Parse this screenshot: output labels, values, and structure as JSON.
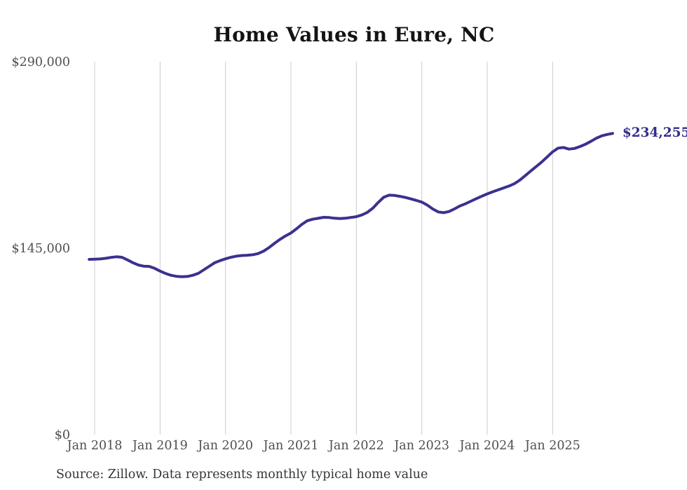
{
  "chart_data": {
    "type": "line",
    "title": "Home Values in Eure, NC",
    "source_note": "Source: Zillow. Data represents monthly typical home value",
    "x_tick_labels": [
      "Jan 2018",
      "Jan 2019",
      "Jan 2020",
      "Jan 2021",
      "Jan 2022",
      "Jan 2023",
      "Jan 2024",
      "Jan 2025"
    ],
    "y_ticks": [
      {
        "label": "$290,000",
        "value": 290000
      },
      {
        "label": "$145,000",
        "value": 145000
      },
      {
        "label": "$0",
        "value": 0
      }
    ],
    "ylim": [
      0,
      290000
    ],
    "x_start": "Dec 2017",
    "x_end": "Dec 2025",
    "interval": "monthly",
    "grid": "vertical",
    "legend_position": "none",
    "line_color": "#3a318f",
    "end_label_color": "#322e8a",
    "gridline_color": "#cccccc",
    "axis_label_color": "#4f4f4f",
    "end_label": "$234,255",
    "end_value": 234255,
    "series": [
      {
        "name": "Typical home value",
        "values": [
          136300,
          136400,
          136600,
          137100,
          137800,
          138300,
          137900,
          135900,
          133700,
          131900,
          131000,
          130800,
          129300,
          127200,
          125300,
          123900,
          123100,
          122800,
          123000,
          123900,
          125400,
          128100,
          130800,
          133600,
          135300,
          136700,
          137900,
          138800,
          139300,
          139500,
          139900,
          140800,
          142700,
          145500,
          148800,
          151800,
          154500,
          156800,
          160000,
          163500,
          166300,
          167500,
          168200,
          169000,
          168800,
          168300,
          168000,
          168300,
          168900,
          169500,
          170800,
          172800,
          176000,
          180500,
          184500,
          186200,
          186000,
          185300,
          184400,
          183300,
          182100,
          180800,
          178500,
          175500,
          173200,
          172600,
          173500,
          175500,
          177800,
          179500,
          181500,
          183500,
          185400,
          187200,
          188800,
          190300,
          191800,
          193300,
          195200,
          198000,
          201500,
          205000,
          208500,
          212000,
          216000,
          219900,
          222800,
          223300,
          222000,
          222500,
          224000,
          225800,
          228000,
          230500,
          232300,
          233400,
          234255
        ]
      }
    ]
  }
}
